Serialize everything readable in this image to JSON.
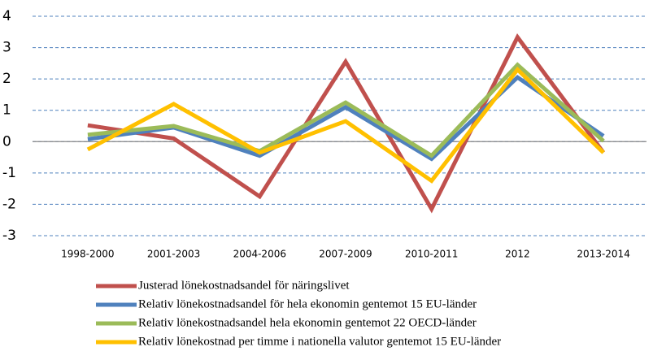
{
  "chart_data": {
    "type": "line",
    "categories": [
      "1998-2000",
      "2001-2003",
      "2004-2006",
      "2007-2009",
      "2010-2011",
      "2012",
      "2013-2014"
    ],
    "series": [
      {
        "name": "Justerad lönekostnadsandel för näringslivet",
        "color": "#c0504d",
        "values": [
          0.52,
          0.1,
          -1.75,
          2.55,
          -2.15,
          3.33,
          -0.35
        ]
      },
      {
        "name": "Relativ lönekostnadsandel för hela ekonomin gentemot 15 EU-länder",
        "color": "#4f81bd",
        "values": [
          0.08,
          0.45,
          -0.45,
          1.1,
          -0.55,
          2.05,
          0.18
        ]
      },
      {
        "name": "Relativ lönekostnadsandel hela ekonomin gentemot 22 OECD-länder",
        "color": "#9bbb59",
        "values": [
          0.22,
          0.5,
          -0.3,
          1.25,
          -0.45,
          2.45,
          0.02
        ]
      },
      {
        "name": "Relativ lönekostnad per timme i nationella valutor  gentemot  15 EU-länder",
        "color": "#ffc000",
        "values": [
          -0.25,
          1.2,
          -0.35,
          0.65,
          -1.25,
          2.3,
          -0.35
        ]
      }
    ],
    "ylim": [
      -3,
      4
    ],
    "yticks": [
      -3,
      -2,
      -1,
      0,
      1,
      2,
      3,
      4
    ],
    "grid": true
  }
}
